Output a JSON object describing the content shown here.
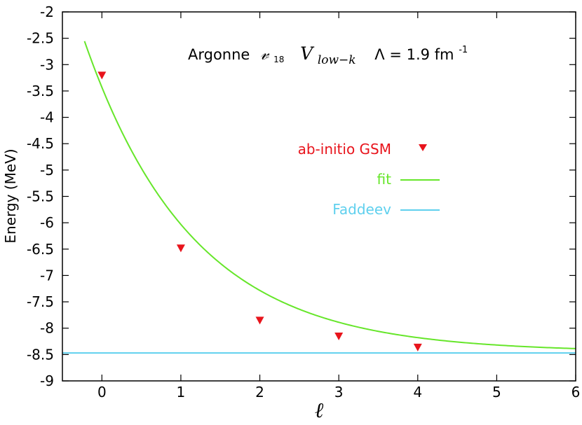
{
  "chart_data": {
    "type": "line",
    "title": {
      "prefix": "Argonne",
      "v_symbol": "𝓋",
      "v_subscript": "18",
      "potential": "V",
      "potential_subscript": "low−k",
      "cutoff_label": "Λ = 1.9 fm",
      "cutoff_exponent": "-1"
    },
    "xlabel": "ℓ",
    "ylabel": "Energy (MeV)",
    "xlim": [
      -0.5,
      6
    ],
    "ylim": [
      -9,
      -2
    ],
    "xticks": [
      0,
      1,
      2,
      3,
      4,
      5,
      6
    ],
    "xtick_labels": [
      "0",
      "1",
      "2",
      "3",
      "4",
      "5",
      "6"
    ],
    "yticks": [
      -2,
      -2.5,
      -3,
      -3.5,
      -4,
      -4.5,
      -5,
      -5.5,
      -6,
      -6.5,
      -7,
      -7.5,
      -8,
      -8.5,
      -9
    ],
    "ytick_labels": [
      "-2",
      "-2.5",
      "-3",
      "-3.5",
      "-4",
      "-4.5",
      "-5",
      "-5.5",
      "-6",
      "-6.5",
      "-7",
      "-7.5",
      "-8",
      "-8.5",
      "-9"
    ],
    "legend_position": "middle-right",
    "series": [
      {
        "name": "ab-initio GSM",
        "kind": "scatter",
        "marker": "triangle-down",
        "color": "#e8141c",
        "x": [
          0,
          1,
          2,
          3,
          4
        ],
        "y": [
          -3.2,
          -6.48,
          -7.85,
          -8.15,
          -8.36
        ]
      },
      {
        "name": "fit",
        "kind": "line",
        "color": "#66e62a",
        "model": "exponential",
        "asymptote": -8.45,
        "amplitude": 5.02,
        "decay_rate": 0.73,
        "x_range": [
          -0.22,
          6
        ]
      },
      {
        "name": "Faddeev",
        "kind": "hline",
        "color": "#5fd0ee",
        "y": -8.47
      }
    ]
  }
}
